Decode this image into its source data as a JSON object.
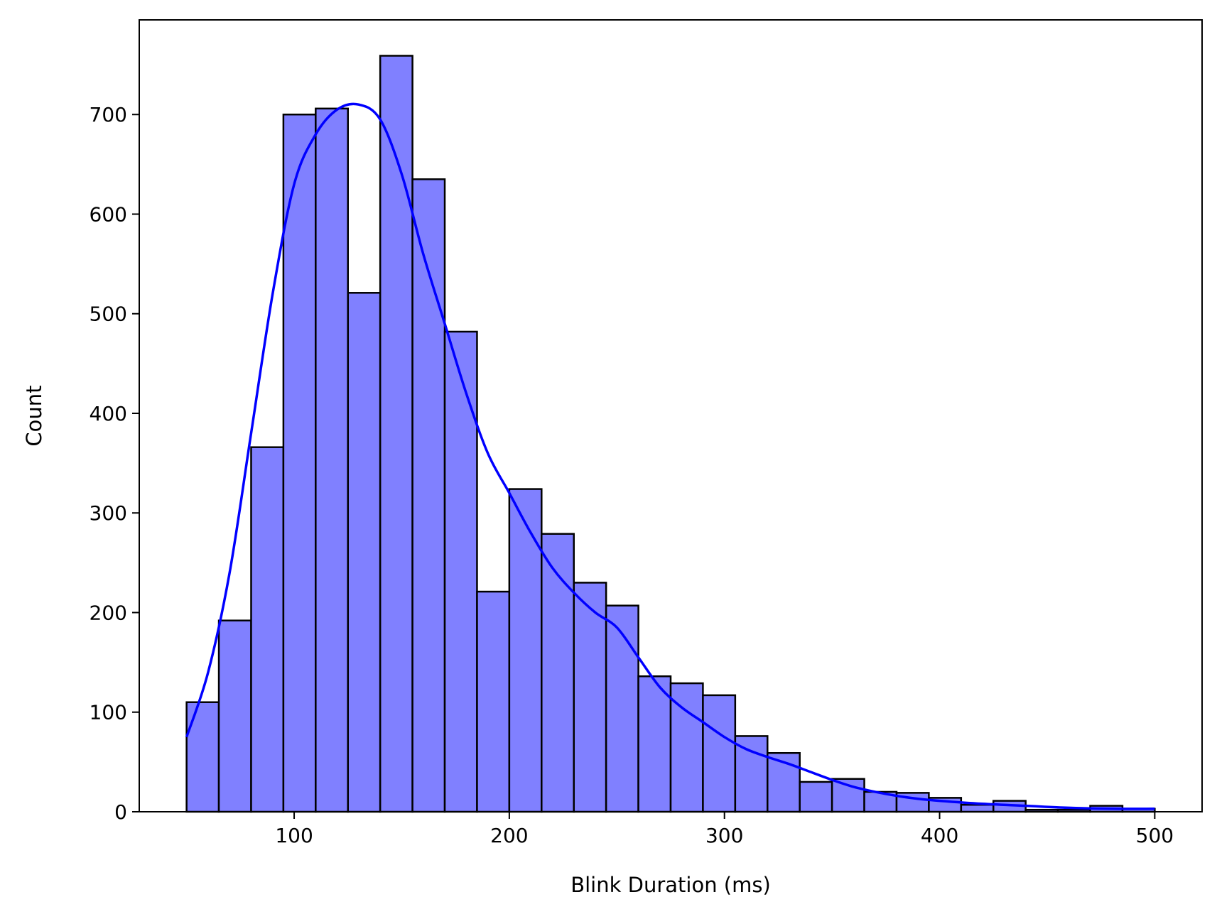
{
  "chart_data": {
    "type": "bar",
    "subtype": "histogram-with-kde",
    "title": "",
    "xlabel": "Blink Duration (ms)",
    "ylabel": "Count",
    "xlim": [
      28,
      522
    ],
    "ylim": [
      0,
      795
    ],
    "grid": false,
    "bins": {
      "start": 50,
      "width": 15,
      "counts": [
        110,
        192,
        366,
        700,
        706,
        521,
        759,
        635,
        482,
        221,
        324,
        279,
        230,
        207,
        136,
        129,
        117,
        76,
        59,
        30,
        33,
        20,
        19,
        14,
        7,
        11,
        2,
        2,
        6,
        3
      ]
    },
    "kde": {
      "x": [
        50,
        60,
        70,
        80,
        90,
        100,
        110,
        120,
        130,
        140,
        150,
        160,
        170,
        180,
        190,
        200,
        210,
        220,
        230,
        240,
        250,
        260,
        270,
        280,
        290,
        300,
        310,
        320,
        330,
        340,
        350,
        360,
        370,
        380,
        390,
        400,
        420,
        440,
        460,
        480,
        500
      ],
      "y": [
        75,
        140,
        240,
        380,
        520,
        630,
        680,
        705,
        710,
        695,
        640,
        560,
        490,
        420,
        360,
        320,
        280,
        245,
        220,
        200,
        185,
        155,
        125,
        105,
        90,
        75,
        63,
        55,
        48,
        40,
        32,
        25,
        20,
        16,
        13,
        11,
        8,
        6,
        4,
        3,
        3
      ]
    },
    "bar_fill": "#8080ff",
    "bar_edge": "#000000",
    "kde_color": "#0000ff",
    "xticks": [
      100,
      200,
      300,
      400,
      500
    ],
    "yticks": [
      0,
      100,
      200,
      300,
      400,
      500,
      600,
      700
    ]
  }
}
